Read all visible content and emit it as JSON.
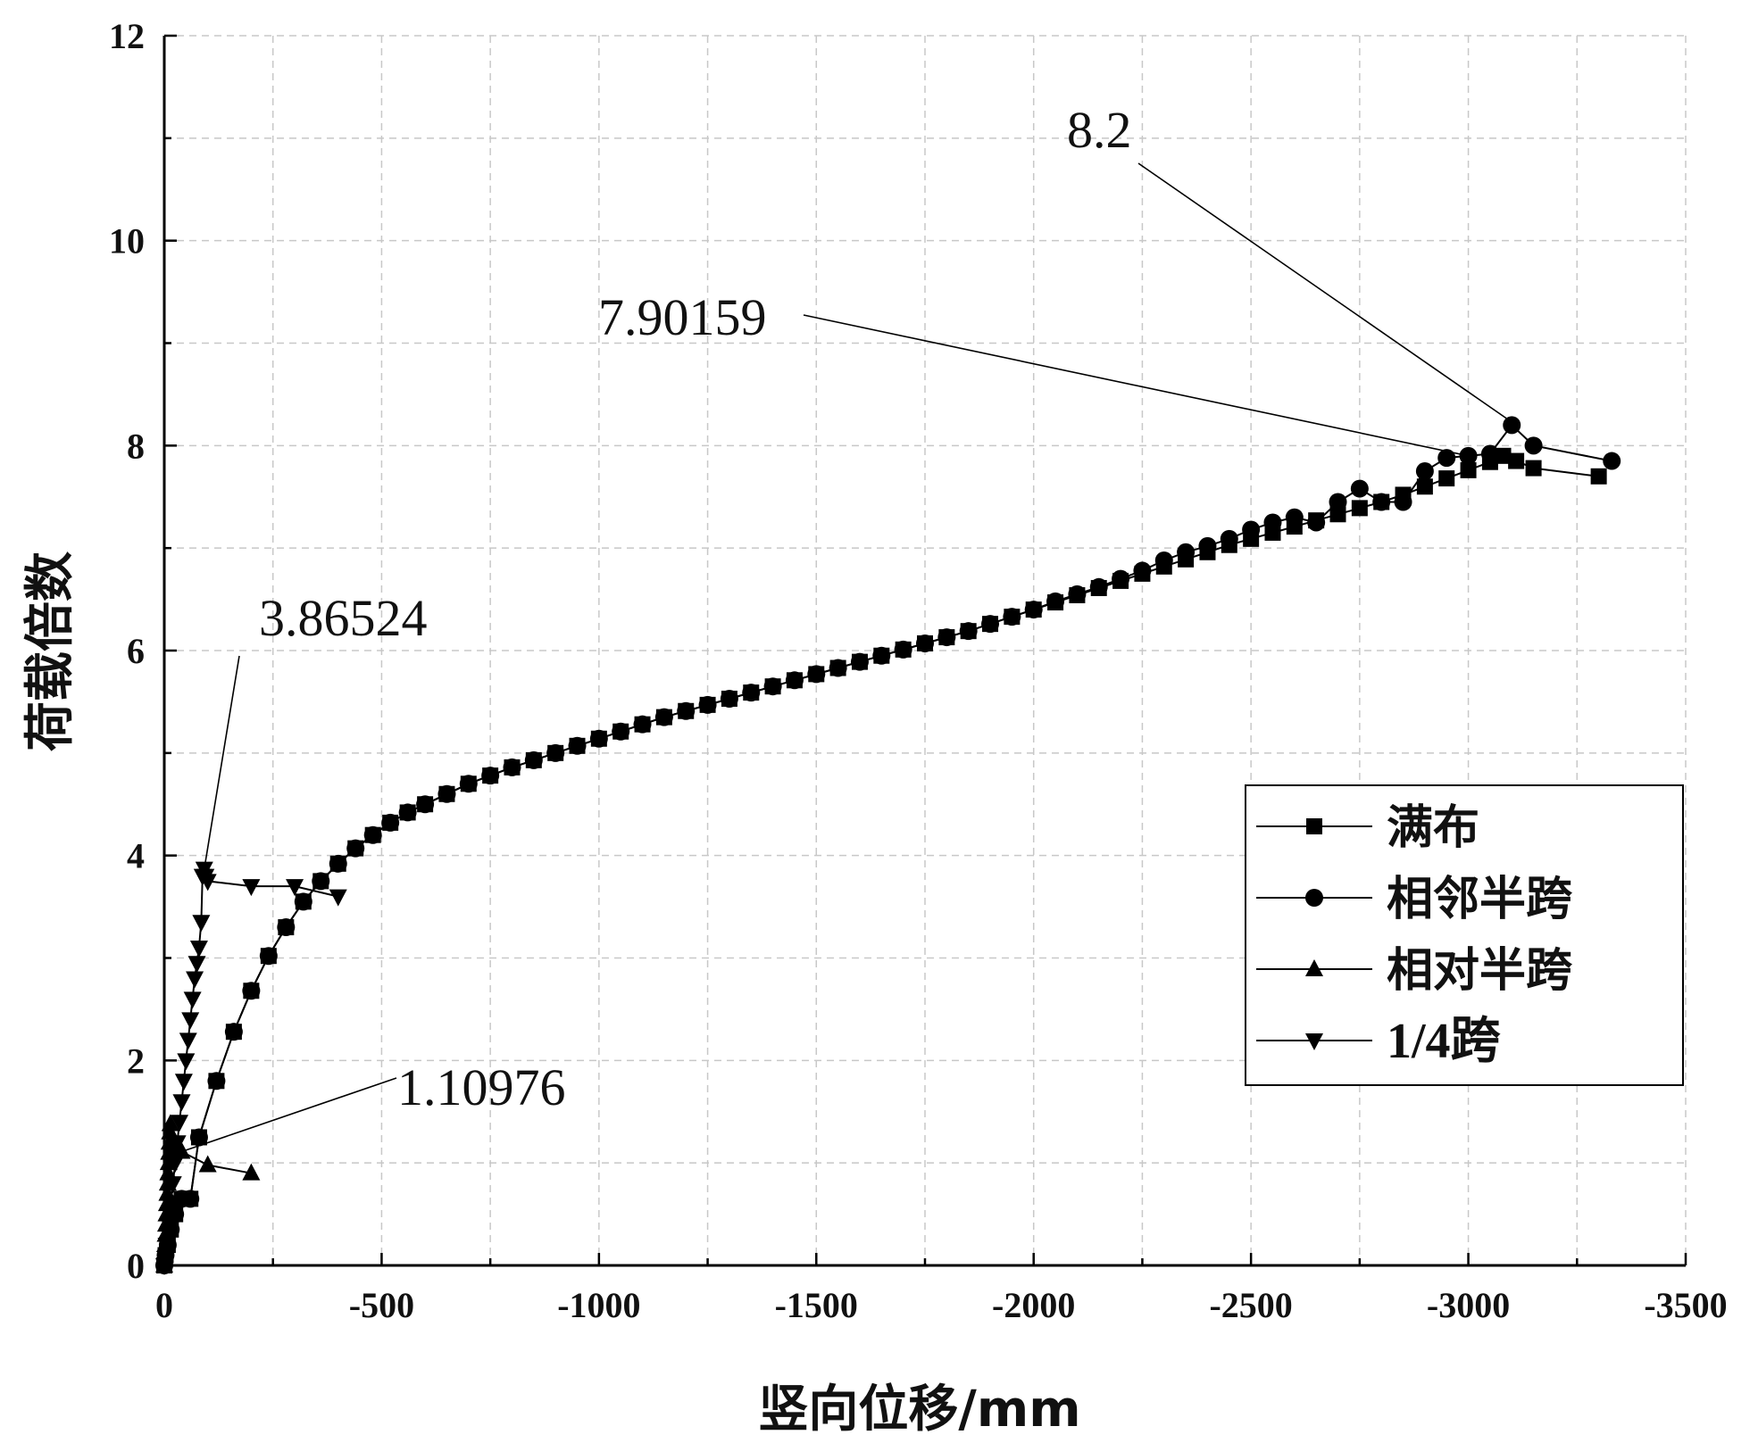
{
  "chart_data": {
    "type": "line",
    "xlabel": "竖向位移/mm",
    "ylabel": "荷载倍数",
    "xlim": [
      0,
      -3500
    ],
    "ylim": [
      0,
      12
    ],
    "xticks": [
      0,
      -500,
      -1000,
      -1500,
      -2000,
      -2500,
      -3000,
      -3500
    ],
    "yticks": [
      0,
      2,
      4,
      6,
      8,
      10,
      12
    ],
    "xtick_labels": [
      "0",
      "-500",
      "-1000",
      "-1500",
      "-2000",
      "-2500",
      "-3000",
      "-3500"
    ],
    "ytick_labels": [
      "0",
      "2",
      "4",
      "6",
      "8",
      "10",
      "12"
    ],
    "grid": true,
    "legend_position": "right",
    "series": [
      {
        "name": "满布",
        "marker": "square",
        "x": [
          0,
          -3,
          -8,
          -15,
          -25,
          -40,
          -60,
          -80,
          -120,
          -160,
          -200,
          -240,
          -280,
          -320,
          -360,
          -400,
          -440,
          -480,
          -520,
          -560,
          -600,
          -650,
          -700,
          -750,
          -800,
          -850,
          -900,
          -950,
          -1000,
          -1050,
          -1100,
          -1150,
          -1200,
          -1250,
          -1300,
          -1350,
          -1400,
          -1450,
          -1500,
          -1550,
          -1600,
          -1650,
          -1700,
          -1750,
          -1800,
          -1850,
          -1900,
          -1950,
          -2000,
          -2050,
          -2100,
          -2150,
          -2200,
          -2250,
          -2300,
          -2350,
          -2400,
          -2450,
          -2500,
          -2550,
          -2600,
          -2650,
          -2700,
          -2750,
          -2800,
          -2850,
          -2900,
          -2950,
          -3000,
          -3050,
          -3080,
          -3110,
          -3150,
          -3300
        ],
        "y": [
          0,
          0.1,
          0.2,
          0.35,
          0.5,
          0.65,
          0.65,
          1.25,
          1.8,
          2.28,
          2.68,
          3.02,
          3.3,
          3.55,
          3.75,
          3.92,
          4.07,
          4.2,
          4.32,
          4.42,
          4.5,
          4.6,
          4.7,
          4.78,
          4.86,
          4.93,
          5.0,
          5.07,
          5.14,
          5.21,
          5.28,
          5.35,
          5.41,
          5.47,
          5.53,
          5.59,
          5.65,
          5.71,
          5.77,
          5.83,
          5.89,
          5.95,
          6.01,
          6.07,
          6.13,
          6.19,
          6.26,
          6.33,
          6.4,
          6.47,
          6.54,
          6.61,
          6.68,
          6.75,
          6.82,
          6.89,
          6.96,
          7.03,
          7.09,
          7.15,
          7.21,
          7.27,
          7.33,
          7.39,
          7.45,
          7.52,
          7.6,
          7.68,
          7.76,
          7.84,
          7.9,
          7.85,
          7.78,
          7.7
        ]
      },
      {
        "name": "相邻半跨",
        "marker": "circle",
        "x": [
          0,
          -3,
          -8,
          -15,
          -25,
          -40,
          -60,
          -80,
          -120,
          -160,
          -200,
          -240,
          -280,
          -320,
          -360,
          -400,
          -440,
          -480,
          -520,
          -560,
          -600,
          -650,
          -700,
          -750,
          -800,
          -850,
          -900,
          -950,
          -1000,
          -1050,
          -1100,
          -1150,
          -1200,
          -1250,
          -1300,
          -1350,
          -1400,
          -1450,
          -1500,
          -1550,
          -1600,
          -1650,
          -1700,
          -1750,
          -1800,
          -1850,
          -1900,
          -1950,
          -2000,
          -2050,
          -2100,
          -2150,
          -2200,
          -2250,
          -2300,
          -2350,
          -2400,
          -2450,
          -2500,
          -2550,
          -2600,
          -2650,
          -2700,
          -2750,
          -2800,
          -2850,
          -2900,
          -2950,
          -3000,
          -3050,
          -3100,
          -3150,
          -3330
        ],
        "y": [
          0,
          0.1,
          0.2,
          0.35,
          0.5,
          0.65,
          0.65,
          1.25,
          1.8,
          2.28,
          2.68,
          3.02,
          3.3,
          3.55,
          3.75,
          3.92,
          4.07,
          4.2,
          4.32,
          4.42,
          4.5,
          4.6,
          4.7,
          4.78,
          4.86,
          4.93,
          5.0,
          5.07,
          5.14,
          5.21,
          5.28,
          5.35,
          5.41,
          5.47,
          5.53,
          5.59,
          5.65,
          5.71,
          5.77,
          5.83,
          5.89,
          5.95,
          6.01,
          6.07,
          6.13,
          6.19,
          6.26,
          6.33,
          6.4,
          6.48,
          6.55,
          6.62,
          6.7,
          6.78,
          6.88,
          6.96,
          7.02,
          7.09,
          7.18,
          7.25,
          7.3,
          7.25,
          7.45,
          7.58,
          7.45,
          7.45,
          7.75,
          7.88,
          7.9,
          7.92,
          8.2,
          8.0,
          7.85
        ]
      },
      {
        "name": "相对半跨",
        "marker": "triangle-up",
        "x": [
          0,
          -1,
          -2,
          -3,
          -4,
          -5,
          -6,
          -7,
          -8,
          -9,
          -10,
          -11,
          -12,
          -13,
          -14,
          -20,
          -40,
          -100,
          -200
        ],
        "y": [
          0,
          0.1,
          0.2,
          0.3,
          0.4,
          0.5,
          0.6,
          0.7,
          0.8,
          0.9,
          1.0,
          1.1,
          1.2,
          1.3,
          1.38,
          1.15,
          1.11,
          0.98,
          0.9
        ]
      },
      {
        "name": "1/4跨",
        "marker": "triangle-down",
        "x": [
          0,
          -5,
          -10,
          -15,
          -20,
          -25,
          -30,
          -35,
          -40,
          -45,
          -50,
          -55,
          -60,
          -65,
          -70,
          -75,
          -80,
          -85,
          -88,
          -92,
          -95,
          -100,
          -200,
          -300,
          -400
        ],
        "y": [
          0,
          0.2,
          0.4,
          0.6,
          0.8,
          1.0,
          1.2,
          1.4,
          1.6,
          1.8,
          2.0,
          2.2,
          2.4,
          2.6,
          2.8,
          2.95,
          3.1,
          3.35,
          3.8,
          3.87,
          3.8,
          3.75,
          3.7,
          3.7,
          3.6
        ]
      }
    ],
    "annotations": [
      {
        "text": "8.2",
        "at": [
          -3110,
          8.2
        ]
      },
      {
        "text": "7.90159",
        "at": [
          -3000,
          7.9
        ]
      },
      {
        "text": "3.86524",
        "at": [
          -92,
          3.87
        ]
      },
      {
        "text": "1.10976",
        "at": [
          -40,
          1.11
        ]
      }
    ]
  }
}
